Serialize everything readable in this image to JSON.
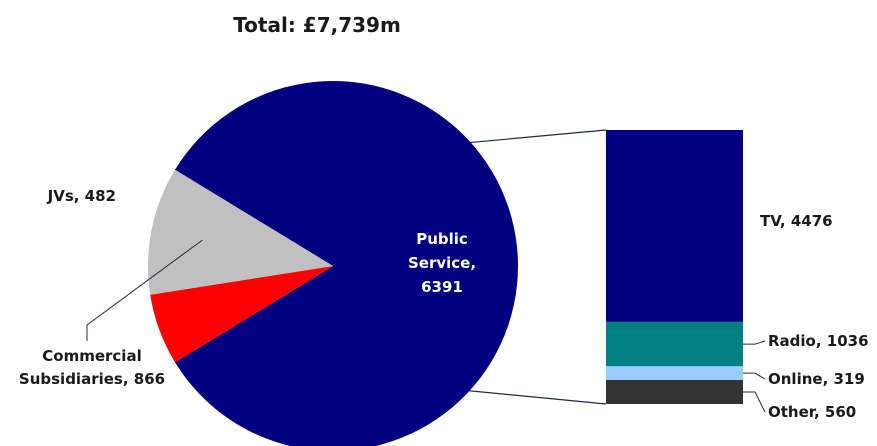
{
  "chart_data": [
    {
      "type": "pie",
      "title": "Total: £7,739m",
      "categories": [
        "Public Service",
        "JVs",
        "Commercial Subsidiaries"
      ],
      "values": [
        6391,
        482,
        866
      ],
      "colors": [
        "#000080",
        "#ff0000",
        "#c0c0c0"
      ],
      "labels": [
        [
          "Public",
          "Service,",
          "6391"
        ],
        [
          "JVs, 482"
        ],
        [
          "Commercial",
          "Subsidiaries, 866"
        ]
      ]
    },
    {
      "type": "bar",
      "stacked": true,
      "breakdown_of": "Public Service",
      "categories": [
        "TV",
        "Radio",
        "Online",
        "Other"
      ],
      "values": [
        4476,
        1036,
        319,
        560
      ],
      "colors": [
        "#000080",
        "#008080",
        "#99ccff",
        "#333333"
      ],
      "labels": [
        "TV, 4476",
        "Radio, 1036",
        "Online, 319",
        "Other, 560"
      ]
    }
  ]
}
